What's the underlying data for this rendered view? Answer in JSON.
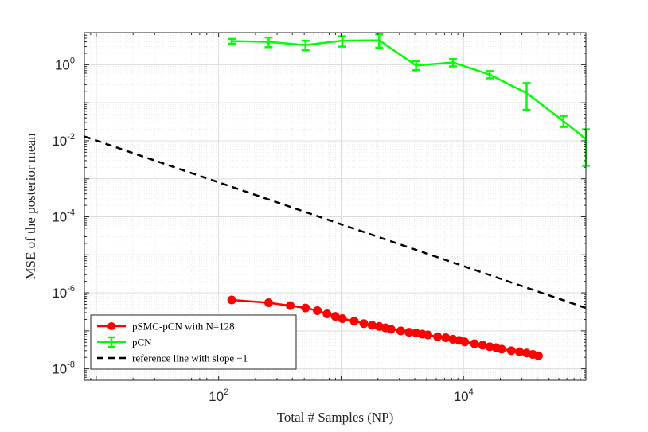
{
  "chart_data": {
    "type": "line",
    "scale": {
      "x": "log",
      "y": "log"
    },
    "xlim": [
      8,
      100000
    ],
    "ylim": [
      5e-09,
      7
    ],
    "xlabel": "Total # Samples (NP)",
    "ylabel": "MSE of the posterior mean",
    "x_ticks": [
      {
        "base": "10",
        "exp": "2",
        "value": 100
      },
      {
        "base": "10",
        "exp": "4",
        "value": 10000
      }
    ],
    "y_ticks": [
      {
        "base": "10",
        "exp": "0",
        "value": 1
      },
      {
        "base": "10",
        "exp": "-2",
        "value": 0.01
      },
      {
        "base": "10",
        "exp": "-4",
        "value": 0.0001
      },
      {
        "base": "10",
        "exp": "-6",
        "value": 1e-06
      },
      {
        "base": "10",
        "exp": "-8",
        "value": 1e-08
      }
    ],
    "grid": true,
    "legend_position": "bottom-left",
    "series": [
      {
        "name": "pSMC-pCN with N=128",
        "color": "#ff0000",
        "marker": "circle",
        "x": [
          128,
          256,
          384,
          512,
          640,
          768,
          896,
          1024,
          1280,
          1536,
          1792,
          2048,
          2304,
          2560,
          3072,
          3584,
          4096,
          4608,
          5120,
          6144,
          7168,
          8192,
          9216,
          10240,
          12288,
          14336,
          16384,
          18432,
          20480,
          24576,
          28672,
          32768,
          36864,
          40960
        ],
        "y": [
          6.5e-07,
          5.5e-07,
          4.6e-07,
          4e-07,
          3.4e-07,
          2.8e-07,
          2.4e-07,
          2.1e-07,
          1.8e-07,
          1.55e-07,
          1.4e-07,
          1.3e-07,
          1.2e-07,
          1.1e-07,
          1e-07,
          9.2e-08,
          8.8e-08,
          8.2e-08,
          7.8e-08,
          7e-08,
          6.6e-08,
          6e-08,
          5.6e-08,
          5.1e-08,
          4.6e-08,
          4.2e-08,
          3.8e-08,
          3.6e-08,
          3.3e-08,
          3e-08,
          2.8e-08,
          2.6e-08,
          2.4e-08,
          2.2e-08
        ]
      },
      {
        "name": "pCN",
        "color": "#00ff00",
        "marker": "errorbar",
        "x": [
          128,
          256,
          512,
          1024,
          2048,
          4096,
          8192,
          16384,
          32768,
          65536,
          100000
        ],
        "y": [
          4.2,
          4.0,
          3.3,
          4.3,
          4.4,
          0.95,
          1.15,
          0.55,
          0.18,
          0.033,
          0.011
        ],
        "err_low": [
          3.6,
          2.9,
          2.4,
          3.0,
          2.8,
          0.72,
          0.9,
          0.44,
          0.065,
          0.023,
          0.0022
        ],
        "err_high": [
          4.8,
          5.2,
          4.3,
          5.6,
          6.3,
          1.25,
          1.42,
          0.68,
          0.33,
          0.045,
          0.02
        ]
      },
      {
        "name": "reference line with slope −1",
        "color": "#000000",
        "marker": "none",
        "dash": "dashed",
        "x": [
          8,
          100000
        ],
        "y": [
          0.013,
          4e-07
        ]
      }
    ]
  }
}
